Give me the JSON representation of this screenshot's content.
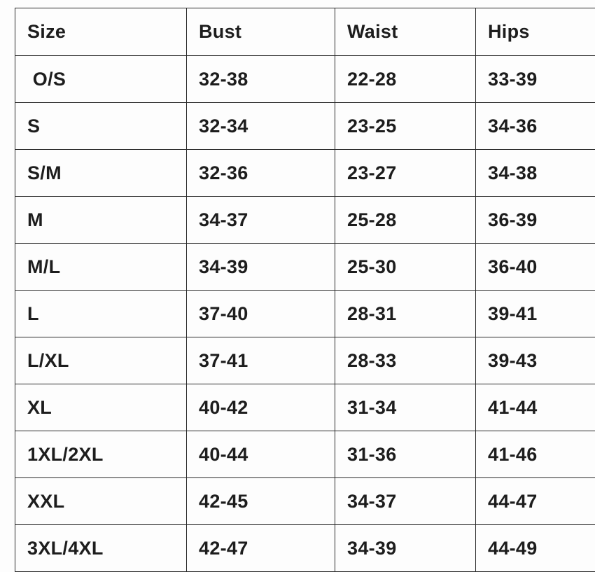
{
  "table": {
    "name": "size-chart",
    "columns": {
      "size": "Size",
      "bust": "Bust",
      "waist": "Waist",
      "hips": "Hips"
    },
    "rows": [
      {
        "size": " O/S",
        "bust": "32-38",
        "waist": "22-28",
        "hips": "33-39"
      },
      {
        "size": "S",
        "bust": "32-34",
        "waist": "23-25",
        "hips": "34-36"
      },
      {
        "size": "S/M",
        "bust": "32-36",
        "waist": "23-27",
        "hips": "34-38"
      },
      {
        "size": "M",
        "bust": "34-37",
        "waist": "25-28",
        "hips": "36-39"
      },
      {
        "size": "M/L",
        "bust": "34-39",
        "waist": "25-30",
        "hips": "36-40"
      },
      {
        "size": "L",
        "bust": "37-40",
        "waist": "28-31",
        "hips": "39-41"
      },
      {
        "size": "L/XL",
        "bust": "37-41",
        "waist": "28-33",
        "hips": "39-43"
      },
      {
        "size": "XL",
        "bust": "40-42",
        "waist": "31-34",
        "hips": "41-44"
      },
      {
        "size": "1XL/2XL",
        "bust": "40-44",
        "waist": "31-36",
        "hips": "41-46"
      },
      {
        "size": "XXL",
        "bust": "42-45",
        "waist": "34-37",
        "hips": "44-47"
      },
      {
        "size": "3XL/4XL",
        "bust": "42-47",
        "waist": "34-39",
        "hips": "44-49"
      }
    ]
  },
  "colors": {
    "text": "#1d1d1d",
    "border": "#2a2a2a",
    "background": "#fdfdfd"
  }
}
